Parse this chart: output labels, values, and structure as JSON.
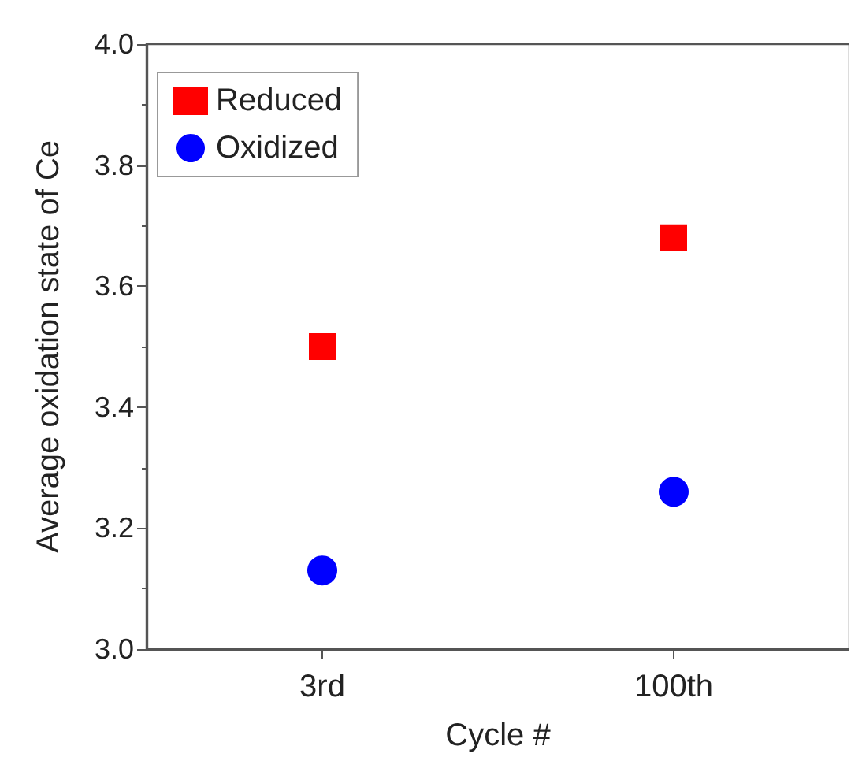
{
  "chart_data": {
    "type": "scatter",
    "xlabel": "Cycle #",
    "ylabel": "Average oxidation state of Ce",
    "categories": [
      "3rd",
      "100th"
    ],
    "series": [
      {
        "name": "Reduced",
        "color": "#ff0000",
        "marker": "square",
        "values": [
          3.5,
          3.68
        ]
      },
      {
        "name": "Oxidized",
        "color": "#0000ff",
        "marker": "circle",
        "values": [
          3.13,
          3.26
        ]
      }
    ],
    "ylim": [
      3.0,
      4.0
    ],
    "yticks": [
      {
        "value": 3,
        "label": "3.0"
      },
      {
        "value": 3.2,
        "label": "3.2"
      },
      {
        "value": 3.4,
        "label": "3.4"
      },
      {
        "value": 3.6,
        "label": "3.6"
      },
      {
        "value": 3.8,
        "label": "3.8"
      },
      {
        "value": 4,
        "label": "4.0"
      }
    ],
    "grid": false,
    "legend": "top left"
  }
}
